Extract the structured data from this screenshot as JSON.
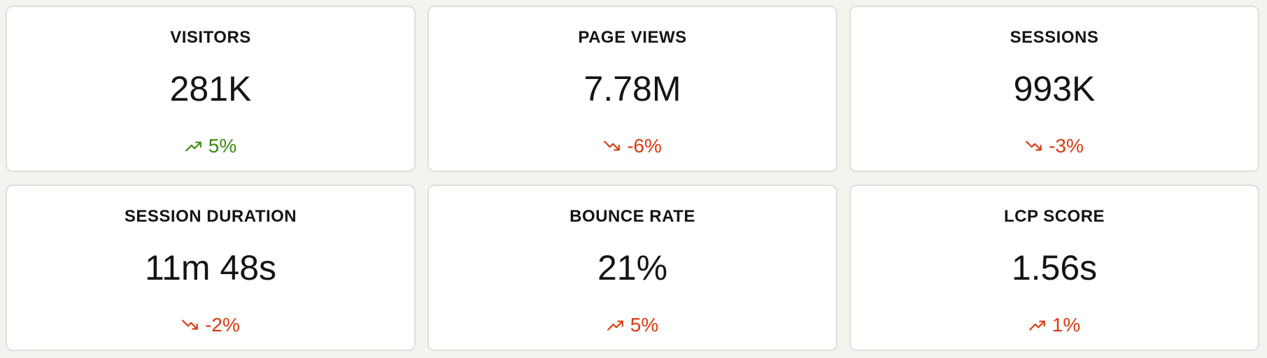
{
  "colors": {
    "page_background": "#f3f3ef",
    "card_background": "#ffffff",
    "card_border": "#dededa",
    "text": "#141414",
    "positive": "#3b8a12",
    "negative": "#d93a12"
  },
  "cards": [
    {
      "title": "VISITORS",
      "value": "281K",
      "delta": "5%",
      "trend": "up",
      "sentiment": "positive",
      "icon": "trending-up-icon"
    },
    {
      "title": "PAGE VIEWS",
      "value": "7.78M",
      "delta": "-6%",
      "trend": "down",
      "sentiment": "negative",
      "icon": "trending-down-icon"
    },
    {
      "title": "SESSIONS",
      "value": "993K",
      "delta": "-3%",
      "trend": "down",
      "sentiment": "negative",
      "icon": "trending-down-icon"
    },
    {
      "title": "SESSION DURATION",
      "value": "11m 48s",
      "delta": "-2%",
      "trend": "down",
      "sentiment": "negative",
      "icon": "trending-down-icon"
    },
    {
      "title": "BOUNCE RATE",
      "value": "21%",
      "delta": "5%",
      "trend": "up",
      "sentiment": "negative",
      "icon": "trending-up-icon"
    },
    {
      "title": "LCP SCORE",
      "value": "1.56s",
      "delta": "1%",
      "trend": "up",
      "sentiment": "negative",
      "icon": "trending-up-icon"
    }
  ]
}
